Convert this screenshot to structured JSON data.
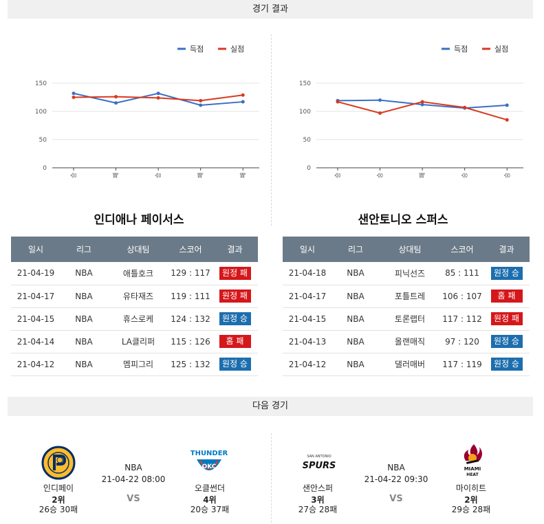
{
  "headers": {
    "results_title": "경기 결과",
    "next_title": "다음 경기"
  },
  "legend": {
    "scored": "득점",
    "conceded": "실점"
  },
  "colors": {
    "scored": "#3a6fc4",
    "conceded": "#d9391f",
    "loss_badge": "#d5171b",
    "win_badge": "#1c6eae",
    "table_header": "#6b7a88"
  },
  "chart_data": [
    {
      "type": "line",
      "x": [
        "승",
        "패",
        "승",
        "패",
        "패"
      ],
      "ylim": [
        0,
        150
      ],
      "yticks": [
        0,
        50,
        100,
        150
      ],
      "grid": true,
      "legend_position": "top-right",
      "series": [
        {
          "name": "득점",
          "values": [
            132,
            115,
            132,
            111,
            117
          ]
        },
        {
          "name": "실점",
          "values": [
            125,
            126,
            124,
            119,
            129
          ]
        }
      ]
    },
    {
      "type": "line",
      "x": [
        "승",
        "승",
        "패",
        "승",
        "승"
      ],
      "ylim": [
        0,
        150
      ],
      "yticks": [
        0,
        50,
        100,
        150
      ],
      "grid": true,
      "legend_position": "top-right",
      "series": [
        {
          "name": "득점",
          "values": [
            119,
            120,
            112,
            106,
            111
          ]
        },
        {
          "name": "실점",
          "values": [
            117,
            97,
            117,
            107,
            85
          ]
        }
      ]
    }
  ],
  "tables": {
    "columns": [
      "일시",
      "리그",
      "상대팀",
      "스코어",
      "결과"
    ],
    "left": {
      "team": "인디애나 페이서스",
      "rows": [
        {
          "date": "21-04-19",
          "league": "NBA",
          "opponent": "애틀호크",
          "score": "129 : 117",
          "result": "원정 패",
          "type": "loss"
        },
        {
          "date": "21-04-17",
          "league": "NBA",
          "opponent": "유타재즈",
          "score": "119 : 111",
          "result": "원정 패",
          "type": "loss"
        },
        {
          "date": "21-04-15",
          "league": "NBA",
          "opponent": "휴스로케",
          "score": "124 : 132",
          "result": "원정 승",
          "type": "win"
        },
        {
          "date": "21-04-14",
          "league": "NBA",
          "opponent": "LA클리퍼",
          "score": "115 : 126",
          "result": "홈 패",
          "type": "loss"
        },
        {
          "date": "21-04-12",
          "league": "NBA",
          "opponent": "멤피그리",
          "score": "125 : 132",
          "result": "원정 승",
          "type": "win"
        }
      ]
    },
    "right": {
      "team": "샌안토니오 스퍼스",
      "rows": [
        {
          "date": "21-04-18",
          "league": "NBA",
          "opponent": "피닉선즈",
          "score": "85 : 111",
          "result": "원정 승",
          "type": "win"
        },
        {
          "date": "21-04-17",
          "league": "NBA",
          "opponent": "포틀트레",
          "score": "106 : 107",
          "result": "홈 패",
          "type": "loss"
        },
        {
          "date": "21-04-15",
          "league": "NBA",
          "opponent": "토론랩터",
          "score": "117 : 112",
          "result": "원정 패",
          "type": "loss"
        },
        {
          "date": "21-04-13",
          "league": "NBA",
          "opponent": "올랜매직",
          "score": "97 : 120",
          "result": "원정 승",
          "type": "win"
        },
        {
          "date": "21-04-12",
          "league": "NBA",
          "opponent": "댈러매버",
          "score": "117 : 119",
          "result": "원정 승",
          "type": "win"
        }
      ]
    }
  },
  "next_games": [
    {
      "league": "NBA",
      "datetime": "21-04-22 08:00",
      "vs": "VS",
      "home": {
        "name": "인디페이",
        "rank": "2위",
        "record": "26승 30패",
        "logo_icon": "pacers-logo-icon"
      },
      "away": {
        "name": "오클썬더",
        "rank": "4위",
        "record": "20승 37패",
        "logo_icon": "thunder-logo-icon",
        "logo_text": "THUNDER"
      }
    },
    {
      "league": "NBA",
      "datetime": "21-04-22 09:30",
      "vs": "VS",
      "home": {
        "name": "샌안스퍼",
        "rank": "3위",
        "record": "27승 28패",
        "logo_icon": "spurs-logo-icon",
        "logo_text": "SPURS",
        "logo_subtext": "SAN ANTONIO"
      },
      "away": {
        "name": "마이히트",
        "rank": "2위",
        "record": "29승 28패",
        "logo_icon": "heat-logo-icon",
        "logo_text": "MIAMI",
        "logo_subtext": "HEAT"
      }
    }
  ]
}
